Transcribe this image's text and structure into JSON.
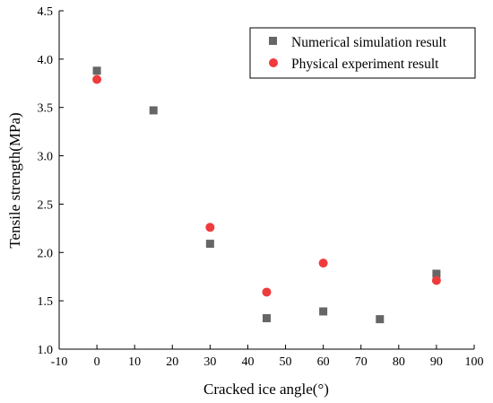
{
  "chart_data": {
    "type": "scatter",
    "xlabel": "Cracked ice angle(°)",
    "ylabel": "Tensile strength(MPa)",
    "xlim": [
      -10,
      100
    ],
    "ylim": [
      1.0,
      4.5
    ],
    "xticks": [
      -10,
      0,
      10,
      20,
      30,
      40,
      50,
      60,
      70,
      80,
      90,
      100
    ],
    "yticks": [
      1.0,
      1.5,
      2.0,
      2.5,
      3.0,
      3.5,
      4.0,
      4.5
    ],
    "grid": false,
    "legend_position": "top-right",
    "series": [
      {
        "name": "Numerical simulation result",
        "marker": "square",
        "color": "#666666",
        "x": [
          0,
          15,
          30,
          45,
          60,
          75,
          90
        ],
        "y": [
          3.88,
          3.47,
          2.09,
          1.32,
          1.39,
          1.31,
          1.78
        ]
      },
      {
        "name": "Physical experiment result",
        "marker": "circle",
        "color": "#ef3b3b",
        "x": [
          0,
          30,
          45,
          60,
          90
        ],
        "y": [
          3.79,
          2.26,
          1.59,
          1.89,
          1.71
        ]
      }
    ]
  }
}
